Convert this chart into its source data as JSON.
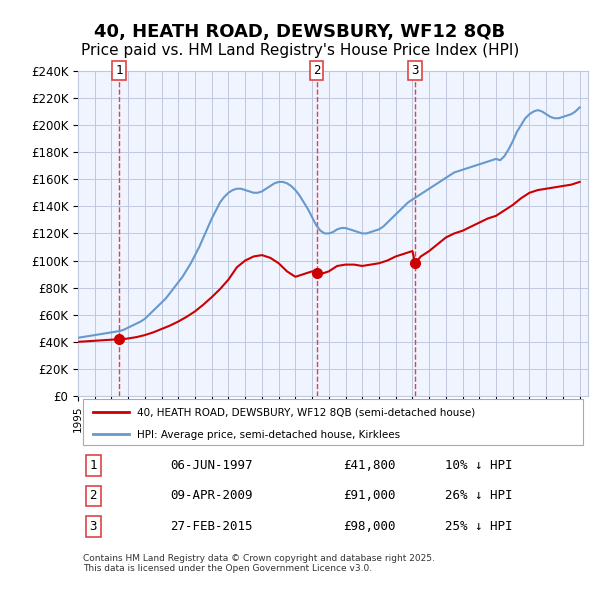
{
  "title": "40, HEATH ROAD, DEWSBURY, WF12 8QB",
  "subtitle": "Price paid vs. HM Land Registry's House Price Index (HPI)",
  "title_fontsize": 13,
  "subtitle_fontsize": 11,
  "ylim": [
    0,
    240000
  ],
  "yticks": [
    0,
    20000,
    40000,
    60000,
    80000,
    100000,
    120000,
    140000,
    160000,
    180000,
    200000,
    220000,
    240000
  ],
  "ytick_labels": [
    "£0",
    "£20K",
    "£40K",
    "£60K",
    "£80K",
    "£100K",
    "£120K",
    "£140K",
    "£160K",
    "£180K",
    "£200K",
    "£220K",
    "£240K"
  ],
  "xmin": 1995.0,
  "xmax": 2025.5,
  "background_color": "#f0f4ff",
  "grid_color": "#c0c8e0",
  "hpi_color": "#6699cc",
  "price_color": "#cc0000",
  "sale_marker_color": "#cc0000",
  "vline_color": "#dd4444",
  "legend_box_color": "#ffffff",
  "legend_border_color": "#aaaaaa",
  "sale_dates": [
    1997.44,
    2009.27,
    2015.16
  ],
  "sale_prices": [
    41800,
    91000,
    98000
  ],
  "sale_labels": [
    "1",
    "2",
    "3"
  ],
  "sale_info": [
    [
      "1",
      "06-JUN-1997",
      "£41,800",
      "10% ↓ HPI"
    ],
    [
      "2",
      "09-APR-2009",
      "£91,000",
      "26% ↓ HPI"
    ],
    [
      "3",
      "27-FEB-2015",
      "£98,000",
      "25% ↓ HPI"
    ]
  ],
  "legend_line1": "40, HEATH ROAD, DEWSBURY, WF12 8QB (semi-detached house)",
  "legend_line2": "HPI: Average price, semi-detached house, Kirklees",
  "footer": "Contains HM Land Registry data © Crown copyright and database right 2025.\nThis data is licensed under the Open Government Licence v3.0.",
  "hpi_data_x": [
    1995.0,
    1995.25,
    1995.5,
    1995.75,
    1996.0,
    1996.25,
    1996.5,
    1996.75,
    1997.0,
    1997.25,
    1997.5,
    1997.75,
    1998.0,
    1998.25,
    1998.5,
    1998.75,
    1999.0,
    1999.25,
    1999.5,
    1999.75,
    2000.0,
    2000.25,
    2000.5,
    2000.75,
    2001.0,
    2001.25,
    2001.5,
    2001.75,
    2002.0,
    2002.25,
    2002.5,
    2002.75,
    2003.0,
    2003.25,
    2003.5,
    2003.75,
    2004.0,
    2004.25,
    2004.5,
    2004.75,
    2005.0,
    2005.25,
    2005.5,
    2005.75,
    2006.0,
    2006.25,
    2006.5,
    2006.75,
    2007.0,
    2007.25,
    2007.5,
    2007.75,
    2008.0,
    2008.25,
    2008.5,
    2008.75,
    2009.0,
    2009.25,
    2009.5,
    2009.75,
    2010.0,
    2010.25,
    2010.5,
    2010.75,
    2011.0,
    2011.25,
    2011.5,
    2011.75,
    2012.0,
    2012.25,
    2012.5,
    2012.75,
    2013.0,
    2013.25,
    2013.5,
    2013.75,
    2014.0,
    2014.25,
    2014.5,
    2014.75,
    2015.0,
    2015.25,
    2015.5,
    2015.75,
    2016.0,
    2016.25,
    2016.5,
    2016.75,
    2017.0,
    2017.25,
    2017.5,
    2017.75,
    2018.0,
    2018.25,
    2018.5,
    2018.75,
    2019.0,
    2019.25,
    2019.5,
    2019.75,
    2020.0,
    2020.25,
    2020.5,
    2020.75,
    2021.0,
    2021.25,
    2021.5,
    2021.75,
    2022.0,
    2022.25,
    2022.5,
    2022.75,
    2023.0,
    2023.25,
    2023.5,
    2023.75,
    2024.0,
    2024.25,
    2024.5,
    2024.75,
    2025.0
  ],
  "hpi_data_y": [
    43000,
    43500,
    44000,
    44500,
    45000,
    45500,
    46000,
    46500,
    47000,
    47500,
    48000,
    49000,
    50500,
    52000,
    53500,
    55000,
    57000,
    60000,
    63000,
    66000,
    69000,
    72000,
    76000,
    80000,
    84000,
    88000,
    93000,
    98000,
    104000,
    110000,
    117000,
    124000,
    131000,
    137000,
    143000,
    147000,
    150000,
    152000,
    153000,
    153000,
    152000,
    151000,
    150000,
    150000,
    151000,
    153000,
    155000,
    157000,
    158000,
    158000,
    157000,
    155000,
    152000,
    148000,
    143000,
    138000,
    132000,
    126000,
    122000,
    120000,
    120000,
    121000,
    123000,
    124000,
    124000,
    123000,
    122000,
    121000,
    120000,
    120000,
    121000,
    122000,
    123000,
    125000,
    128000,
    131000,
    134000,
    137000,
    140000,
    143000,
    145000,
    147000,
    149000,
    151000,
    153000,
    155000,
    157000,
    159000,
    161000,
    163000,
    165000,
    166000,
    167000,
    168000,
    169000,
    170000,
    171000,
    172000,
    173000,
    174000,
    175000,
    174000,
    177000,
    182000,
    188000,
    195000,
    200000,
    205000,
    208000,
    210000,
    211000,
    210000,
    208000,
    206000,
    205000,
    205000,
    206000,
    207000,
    208000,
    210000,
    213000
  ],
  "price_line_x": [
    1995.0,
    1995.25,
    1995.5,
    1995.75,
    1996.0,
    1996.25,
    1996.5,
    1996.75,
    1997.0,
    1997.25,
    1997.44,
    1997.5,
    1997.75,
    1998.0,
    1998.5,
    1999.0,
    1999.5,
    2000.0,
    2000.5,
    2001.0,
    2001.5,
    2002.0,
    2002.5,
    2003.0,
    2003.5,
    2004.0,
    2004.5,
    2005.0,
    2005.5,
    2006.0,
    2006.5,
    2007.0,
    2007.5,
    2008.0,
    2008.5,
    2009.0,
    2009.27,
    2009.5,
    2010.0,
    2010.5,
    2011.0,
    2011.5,
    2012.0,
    2012.5,
    2013.0,
    2013.5,
    2014.0,
    2014.5,
    2015.0,
    2015.16,
    2015.5,
    2016.0,
    2016.5,
    2017.0,
    2017.5,
    2018.0,
    2018.5,
    2019.0,
    2019.5,
    2020.0,
    2020.5,
    2021.0,
    2021.5,
    2022.0,
    2022.5,
    2023.0,
    2023.5,
    2024.0,
    2024.5,
    2025.0
  ],
  "price_line_y": [
    40000,
    40200,
    40400,
    40600,
    40800,
    41000,
    41200,
    41400,
    41600,
    41800,
    41800,
    41900,
    42100,
    42500,
    43500,
    45000,
    47000,
    49500,
    52000,
    55000,
    58500,
    62500,
    67500,
    73000,
    79000,
    86000,
    95000,
    100000,
    103000,
    104000,
    102000,
    98000,
    92000,
    88000,
    90000,
    92000,
    91000,
    90000,
    92000,
    96000,
    97000,
    97000,
    96000,
    97000,
    98000,
    100000,
    103000,
    105000,
    107000,
    98000,
    103000,
    107000,
    112000,
    117000,
    120000,
    122000,
    125000,
    128000,
    131000,
    133000,
    137000,
    141000,
    146000,
    150000,
    152000,
    153000,
    154000,
    155000,
    156000,
    158000
  ]
}
